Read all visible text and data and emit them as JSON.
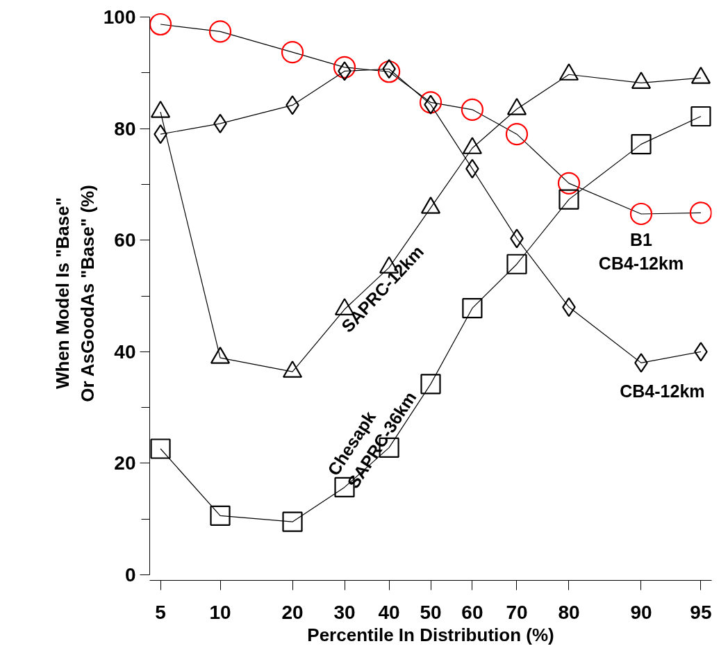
{
  "chart_data": {
    "type": "line",
    "xlabel": "Percentile In Distribution (%)",
    "ylabel": "When Model Is \"Base\"\nOr AsGoodAs \"Base\" (%)",
    "categories": [
      "5",
      "10",
      "20",
      "30",
      "40",
      "50",
      "60",
      "70",
      "80",
      "90",
      "95"
    ],
    "ylim": [
      0,
      100
    ],
    "yticks": [
      0,
      20,
      40,
      60,
      80,
      100
    ],
    "grid": false,
    "line_style": "solid",
    "series": [
      {
        "name": "B1\nCB4-12km",
        "color": "#ff0000",
        "marker": "circle",
        "values": [
          98.7,
          97.4,
          93.7,
          91,
          90.2,
          84.7,
          83.4,
          79,
          70.2,
          64.7,
          64.9
        ]
      },
      {
        "name": "SAPRC-12km",
        "color": "#000000",
        "marker": "triangle",
        "values": [
          83,
          38.9,
          36.4,
          47.6,
          55.1,
          65.8,
          76.5,
          83.5,
          89.7,
          88.2,
          89.1
        ]
      },
      {
        "name": "CB4-12km",
        "color": "#000000",
        "marker": "diamond",
        "values": [
          79,
          80.9,
          84.2,
          90.3,
          90.7,
          84.3,
          72.8,
          60.3,
          48,
          38,
          40
        ]
      },
      {
        "name": "Chesapk\nSAPRC-36km",
        "color": "#000000",
        "marker": "square",
        "values": [
          22.6,
          10.6,
          9.5,
          15.7,
          22.8,
          34.2,
          47.8,
          55.7,
          67.3,
          77.2,
          82.2
        ]
      }
    ]
  }
}
